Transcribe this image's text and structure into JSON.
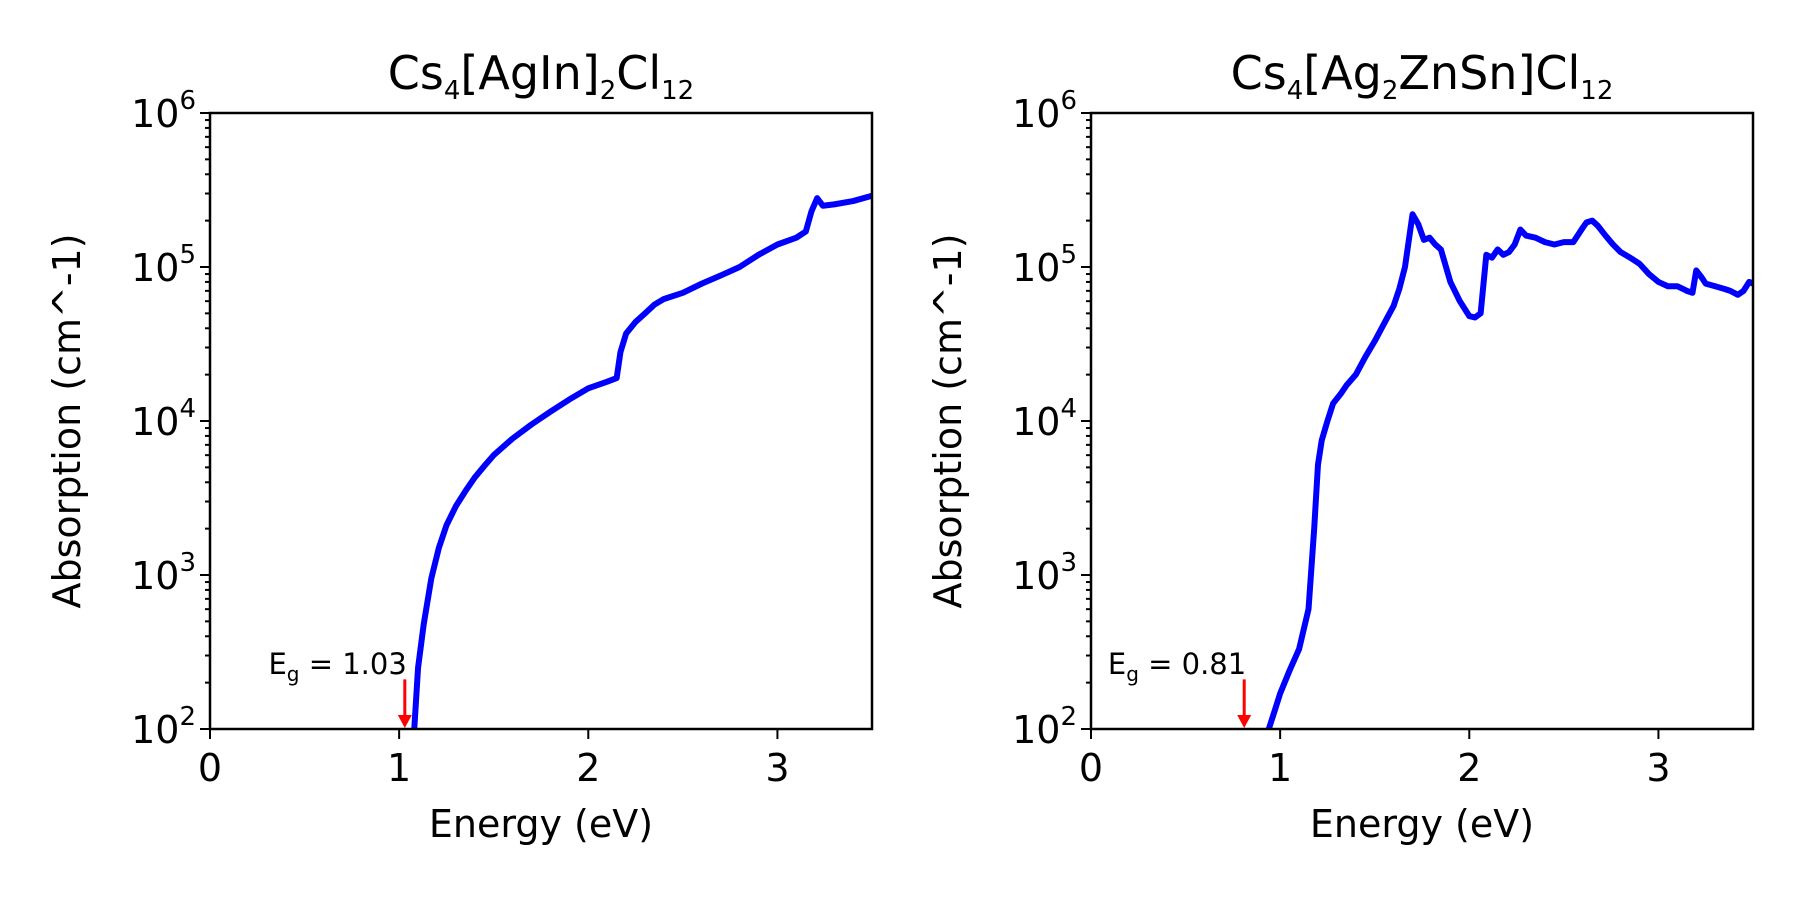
{
  "chart_data": [
    {
      "type": "line",
      "title": {
        "base": "Cs",
        "sub1": "4",
        "mid1": "[AgIn]",
        "sub2": "2",
        "mid2": "Cl",
        "sub3": "12"
      },
      "xlabel": "Energy (eV)",
      "ylabel": "Absorption (cm^-1)",
      "xlim": [
        0,
        3.5
      ],
      "ylim": [
        100,
        1000000
      ],
      "yscale": "log",
      "grid": false,
      "x_ticks": [
        {
          "value": 0,
          "label": "0"
        },
        {
          "value": 1,
          "label": "1"
        },
        {
          "value": 2,
          "label": "2"
        },
        {
          "value": 3,
          "label": "3"
        }
      ],
      "y_ticks": [
        {
          "value": 100,
          "base": "10",
          "exp": "2"
        },
        {
          "value": 1000,
          "base": "10",
          "exp": "3"
        },
        {
          "value": 10000,
          "base": "10",
          "exp": "4"
        },
        {
          "value": 100000,
          "base": "10",
          "exp": "5"
        },
        {
          "value": 1000000,
          "base": "10",
          "exp": "6"
        }
      ],
      "series": [
        {
          "color": "#0000ff",
          "x": [
            1.08,
            1.1,
            1.13,
            1.17,
            1.21,
            1.25,
            1.3,
            1.35,
            1.4,
            1.45,
            1.5,
            1.6,
            1.7,
            1.8,
            1.9,
            2.0,
            2.1,
            2.15,
            2.17,
            2.2,
            2.25,
            2.3,
            2.35,
            2.4,
            2.5,
            2.6,
            2.7,
            2.8,
            2.9,
            3.0,
            3.1,
            3.15,
            3.18,
            3.21,
            3.24,
            3.3,
            3.4,
            3.5
          ],
          "y": [
            100,
            250,
            480,
            950,
            1500,
            2100,
            2800,
            3500,
            4300,
            5100,
            6000,
            7700,
            9500,
            11500,
            13800,
            16300,
            18000,
            19000,
            28000,
            37000,
            44000,
            50000,
            57000,
            62000,
            68000,
            78000,
            88000,
            100000,
            120000,
            140000,
            155000,
            170000,
            230000,
            280000,
            250000,
            255000,
            268000,
            290000
          ]
        }
      ],
      "annotations": [
        {
          "text_base": "E",
          "text_sub": "g",
          "text_rest": " = 1.03",
          "x": 1.03,
          "y_text": 190,
          "color": "#ff0000",
          "arrow_from": 210,
          "arrow_to": 100
        }
      ]
    },
    {
      "type": "line",
      "title": {
        "base": "Cs",
        "sub1": "4",
        "mid1": "[Ag",
        "sub2": "2",
        "mid2": "ZnSn]Cl",
        "sub3": "12"
      },
      "xlabel": "Energy (eV)",
      "ylabel": "Absorption (cm^-1)",
      "xlim": [
        0,
        3.5
      ],
      "ylim": [
        100,
        1000000
      ],
      "yscale": "log",
      "grid": false,
      "x_ticks": [
        {
          "value": 0,
          "label": "0"
        },
        {
          "value": 1,
          "label": "1"
        },
        {
          "value": 2,
          "label": "2"
        },
        {
          "value": 3,
          "label": "3"
        }
      ],
      "y_ticks": [
        {
          "value": 100,
          "base": "10",
          "exp": "2"
        },
        {
          "value": 1000,
          "base": "10",
          "exp": "3"
        },
        {
          "value": 10000,
          "base": "10",
          "exp": "4"
        },
        {
          "value": 100000,
          "base": "10",
          "exp": "5"
        },
        {
          "value": 1000000,
          "base": "10",
          "exp": "6"
        }
      ],
      "series": [
        {
          "color": "#0000ff",
          "x": [
            0.94,
            0.97,
            1.0,
            1.05,
            1.1,
            1.15,
            1.18,
            1.2,
            1.22,
            1.25,
            1.28,
            1.32,
            1.35,
            1.4,
            1.45,
            1.5,
            1.55,
            1.6,
            1.63,
            1.66,
            1.7,
            1.73,
            1.76,
            1.79,
            1.82,
            1.85,
            1.9,
            1.95,
            2.0,
            2.03,
            2.06,
            2.09,
            2.12,
            2.15,
            2.18,
            2.21,
            2.24,
            2.27,
            2.3,
            2.35,
            2.4,
            2.45,
            2.5,
            2.55,
            2.6,
            2.62,
            2.65,
            2.68,
            2.72,
            2.76,
            2.8,
            2.85,
            2.9,
            2.95,
            3.0,
            3.05,
            3.1,
            3.15,
            3.18,
            3.2,
            3.23,
            3.25,
            3.3,
            3.35,
            3.38,
            3.42,
            3.45,
            3.48,
            3.5
          ],
          "y": [
            100,
            130,
            170,
            240,
            330,
            600,
            2000,
            5200,
            7500,
            10000,
            13000,
            15000,
            17000,
            20000,
            26000,
            33000,
            43000,
            56000,
            72000,
            100000,
            220000,
            190000,
            150000,
            155000,
            140000,
            130000,
            80000,
            60000,
            48000,
            47000,
            50000,
            120000,
            115000,
            130000,
            120000,
            125000,
            140000,
            175000,
            160000,
            155000,
            145000,
            140000,
            145000,
            145000,
            180000,
            195000,
            200000,
            185000,
            160000,
            140000,
            125000,
            115000,
            105000,
            90000,
            80000,
            75000,
            75000,
            70000,
            68000,
            95000,
            85000,
            78000,
            75000,
            72000,
            70000,
            66000,
            70000,
            80000,
            78000
          ]
        }
      ],
      "annotations": [
        {
          "text_base": "E",
          "text_sub": "g",
          "text_rest": " = 0.81",
          "x": 0.81,
          "y_text": 190,
          "color": "#ff0000",
          "arrow_from": 210,
          "arrow_to": 100
        }
      ]
    }
  ]
}
